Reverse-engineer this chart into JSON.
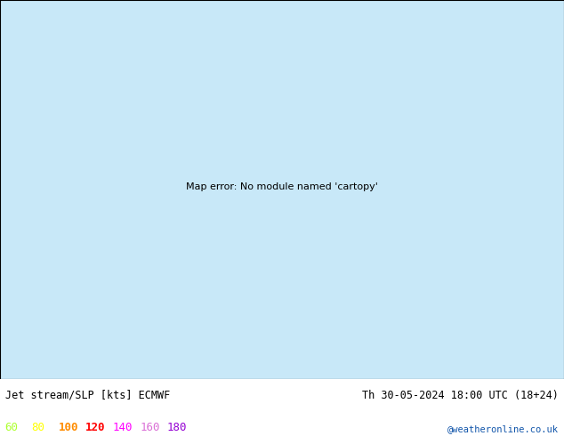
{
  "title_left": "Jet stream/SLP [kts] ECMWF",
  "title_right": "Th 30-05-2024 18:00 UTC (18+24)",
  "copyright": "@weatheronline.co.uk",
  "legend_values": [
    "60",
    "80",
    "100",
    "120",
    "140",
    "160",
    "180"
  ],
  "legend_colors": [
    "#adff2f",
    "#ffff00",
    "#ff8c00",
    "#ff0000",
    "#ff00ff",
    "#da70d6",
    "#9400d3"
  ],
  "bg_color": "#ffffff",
  "figure_width": 6.34,
  "figure_height": 4.9,
  "dpi": 100
}
